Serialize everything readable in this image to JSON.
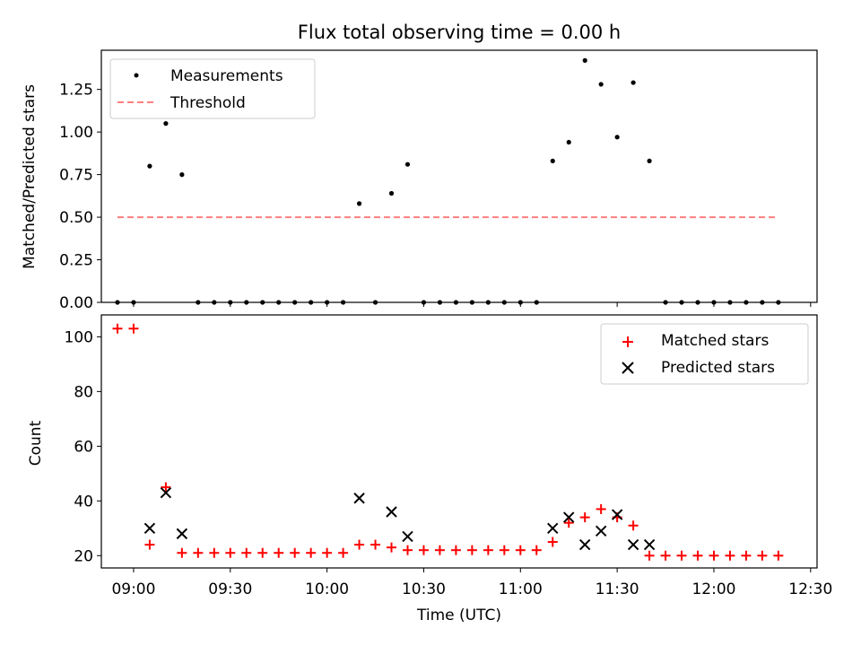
{
  "figure": {
    "title": "Flux total observing time = 0.00 h"
  },
  "colors": {
    "measurement": "#000000",
    "threshold": "#ff7f7f",
    "matched": "#ff0000",
    "predicted": "#000000",
    "axes": "#000000",
    "background": "#ffffff"
  },
  "chart_data": [
    {
      "type": "scatter",
      "title": "Flux total observing time = 0.00 h",
      "xlabel": "",
      "ylabel": "Matched/Predicted stars",
      "xlim": [
        "08:50",
        "12:32"
      ],
      "ylim": [
        0,
        1.48
      ],
      "yticks": [
        0.0,
        0.25,
        0.5,
        0.75,
        1.0,
        1.25
      ],
      "ytick_labels": [
        "0.00",
        "0.25",
        "0.50",
        "0.75",
        "1.00",
        "1.25"
      ],
      "xticks": [
        "09:00",
        "09:30",
        "10:00",
        "10:30",
        "11:00",
        "11:30",
        "12:00",
        "12:30"
      ],
      "grid": false,
      "legend": {
        "position": "upper-left",
        "entries": [
          "Measurements",
          "Threshold"
        ]
      },
      "series": [
        {
          "name": "Measurements",
          "marker": "dot",
          "x": [
            "08:55",
            "09:00",
            "09:05",
            "09:10",
            "09:15",
            "09:20",
            "09:25",
            "09:30",
            "09:35",
            "09:40",
            "09:45",
            "09:50",
            "09:55",
            "10:00",
            "10:05",
            "10:10",
            "10:15",
            "10:20",
            "10:25",
            "10:30",
            "10:35",
            "10:40",
            "10:45",
            "10:50",
            "10:55",
            "11:00",
            "11:05",
            "11:10",
            "11:15",
            "11:20",
            "11:25",
            "11:30",
            "11:35",
            "11:40",
            "11:45",
            "11:50",
            "11:55",
            "12:00",
            "12:05",
            "12:10",
            "12:15",
            "12:20"
          ],
          "y": [
            0.0,
            0.0,
            0.8,
            1.05,
            0.75,
            0.0,
            0.0,
            0.0,
            0.0,
            0.0,
            0.0,
            0.0,
            0.0,
            0.0,
            0.0,
            0.58,
            0.0,
            0.64,
            0.81,
            0.0,
            0.0,
            0.0,
            0.0,
            0.0,
            0.0,
            0.0,
            0.0,
            0.83,
            0.94,
            1.42,
            1.28,
            0.97,
            1.29,
            0.83,
            0.0,
            0.0,
            0.0,
            0.0,
            0.0,
            0.0,
            0.0,
            0.0
          ]
        },
        {
          "name": "Threshold",
          "style": "dashed",
          "x": [
            "08:55",
            "12:20"
          ],
          "y": [
            0.5,
            0.5
          ]
        }
      ]
    },
    {
      "type": "scatter",
      "title": "",
      "xlabel": "Time (UTC)",
      "ylabel": "Count",
      "xlim": [
        "08:50",
        "12:32"
      ],
      "ylim": [
        15.5,
        108
      ],
      "yticks": [
        20,
        40,
        60,
        80,
        100
      ],
      "xticks": [
        "09:00",
        "09:30",
        "10:00",
        "10:30",
        "11:00",
        "11:30",
        "12:00",
        "12:30"
      ],
      "grid": false,
      "legend": {
        "position": "upper-right",
        "entries": [
          "Matched stars",
          "Predicted stars"
        ]
      },
      "series": [
        {
          "name": "Matched stars",
          "marker": "plus",
          "x": [
            "08:55",
            "09:00",
            "09:05",
            "09:10",
            "09:15",
            "09:20",
            "09:25",
            "09:30",
            "09:35",
            "09:40",
            "09:45",
            "09:50",
            "09:55",
            "10:00",
            "10:05",
            "10:10",
            "10:15",
            "10:20",
            "10:25",
            "10:30",
            "10:35",
            "10:40",
            "10:45",
            "10:50",
            "10:55",
            "11:00",
            "11:05",
            "11:10",
            "11:15",
            "11:20",
            "11:25",
            "11:30",
            "11:35",
            "11:40",
            "11:45",
            "11:50",
            "11:55",
            "12:00",
            "12:05",
            "12:10",
            "12:15",
            "12:20"
          ],
          "y": [
            103,
            103,
            24,
            45,
            21,
            21,
            21,
            21,
            21,
            21,
            21,
            21,
            21,
            21,
            21,
            24,
            24,
            23,
            22,
            22,
            22,
            22,
            22,
            22,
            22,
            22,
            22,
            25,
            32,
            34,
            37,
            34,
            31,
            20,
            20,
            20,
            20,
            20,
            20,
            20,
            20,
            20
          ]
        },
        {
          "name": "Predicted stars",
          "marker": "x",
          "x": [
            "09:05",
            "09:10",
            "09:15",
            "10:10",
            "10:20",
            "10:25",
            "11:10",
            "11:15",
            "11:20",
            "11:25",
            "11:30",
            "11:35",
            "11:40"
          ],
          "y": [
            30,
            43,
            28,
            41,
            36,
            27,
            30,
            34,
            24,
            29,
            35,
            24,
            24
          ]
        }
      ]
    }
  ]
}
